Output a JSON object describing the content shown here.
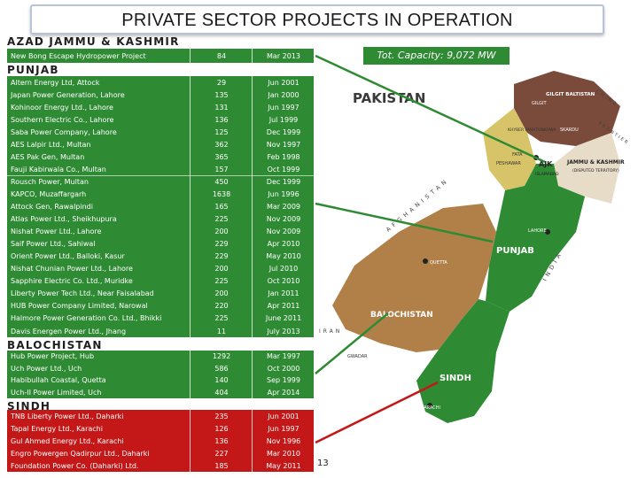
{
  "title": "PRIVATE SECTOR PROJECTS IN OPERATION",
  "total_capacity": "Tot. Capacity: 9,072 MW",
  "page_number": "13",
  "sections": {
    "ajk": {
      "heading": "AZAD JAMMU & KASHMIR",
      "rows": [
        {
          "name": "New Bong Escape Hydropower Project",
          "capacity": "84",
          "date": "Mar 2013"
        }
      ]
    },
    "punjab": {
      "heading": "PUNJAB",
      "rows": [
        {
          "name": "Altern Energy Ltd, Attock",
          "capacity": "29",
          "date": "Jun 2001"
        },
        {
          "name": "Japan Power Generation, Lahore",
          "capacity": "135",
          "date": "Jan 2000"
        },
        {
          "name": "Kohinoor Energy Ltd., Lahore",
          "capacity": "131",
          "date": "Jun 1997"
        },
        {
          "name": "Southern Electric Co., Lahore",
          "capacity": "136",
          "date": "Jul 1999"
        },
        {
          "name": "Saba Power Company, Lahore",
          "capacity": "125",
          "date": "Dec 1999"
        },
        {
          "name": "AES Lalpir Ltd., Multan",
          "capacity": "362",
          "date": "Nov 1997"
        },
        {
          "name": "AES Pak Gen, Multan",
          "capacity": "365",
          "date": "Feb 1998"
        },
        {
          "name": "Fauji Kabirwala Co., Multan",
          "capacity": "157",
          "date": "Oct 1999"
        },
        {
          "name": "Rousch Power, Multan",
          "capacity": "450",
          "date": "Dec 1999"
        },
        {
          "name": "KAPCO, Muzaffargarh",
          "capacity": "1638",
          "date": "Jun 1996"
        },
        {
          "name": "Attock Gen, Rawalpindi",
          "capacity": "165",
          "date": "Mar 2009"
        },
        {
          "name": "Atlas Power Ltd., Sheikhupura",
          "capacity": "225",
          "date": "Nov 2009"
        },
        {
          "name": "Nishat Power Ltd., Lahore",
          "capacity": "200",
          "date": "Nov 2009"
        },
        {
          "name": "Saif Power Ltd., Sahiwal",
          "capacity": "229",
          "date": "Apr 2010"
        },
        {
          "name": "Orient Power Ltd., Balloki, Kasur",
          "capacity": "229",
          "date": "May 2010"
        },
        {
          "name": "Nishat Chunian Power Ltd., Lahore",
          "capacity": "200",
          "date": "Jul 2010"
        },
        {
          "name": "Sapphire Electric Co. Ltd., Muridke",
          "capacity": "225",
          "date": "Oct 2010"
        },
        {
          "name": "Liberty Power Tech Ltd., Near Faisalabad",
          "capacity": "200",
          "date": "Jan 2011"
        },
        {
          "name": "HUB Power Company Limited, Narowal",
          "capacity": "220",
          "date": "Apr 2011"
        },
        {
          "name": "Halmore Power Generation Co. Ltd., Bhikki",
          "capacity": "225",
          "date": "June 2011"
        },
        {
          "name": "Davis Energen Power Ltd., Jhang",
          "capacity": "11",
          "date": "July 2013"
        }
      ]
    },
    "balochistan": {
      "heading": "BALOCHISTAN",
      "rows": [
        {
          "name": "Hub Power Project, Hub",
          "capacity": "1292",
          "date": "Mar 1997"
        },
        {
          "name": "Uch Power Ltd., Uch",
          "capacity": "586",
          "date": "Oct 2000"
        },
        {
          "name": "Habibullah Coastal, Quetta",
          "capacity": "140",
          "date": "Sep 1999"
        },
        {
          "name": "Uch-II Power Limited, Uch",
          "capacity": "404",
          "date": "Apr 2014"
        }
      ]
    },
    "sindh": {
      "heading": "SINDH",
      "rows": [
        {
          "name": "TNB Liberty Power Ltd., Daharki",
          "capacity": "235",
          "date": "Jun 2001"
        },
        {
          "name": "Tapal Energy Ltd., Karachi",
          "capacity": "126",
          "date": "Jun 1997"
        },
        {
          "name": "Gul Ahmed Energy Ltd., Karachi",
          "capacity": "136",
          "date": "Nov 1996"
        },
        {
          "name": "Engro Powergen Qadirpur Ltd., Daharki",
          "capacity": "227",
          "date": "Mar 2010"
        },
        {
          "name": "Foundation Power Co. (Daharki) Ltd.",
          "capacity": "185",
          "date": "May 2011"
        }
      ]
    }
  },
  "map": {
    "country_label": "PAKISTAN",
    "region_labels": {
      "gilgit_baltistan": "GILGIT BALTISTAN",
      "gilgit": "GILGIT",
      "kpk": "KHYBER PAKHTUNKHWA",
      "skardu": "SKARDU",
      "fata": "FATA",
      "peshawar": "PESHAWAR",
      "ajk": "AJK",
      "islamabad": "ISLAMABAD",
      "jk": "JAMMU & KASHMIR",
      "disputed": "(DISPUTED TERRITORY)",
      "lahore": "LAHORE",
      "quetta": "QUETTA",
      "punjab": "PUNJAB",
      "balochistan": "BALOCHISTAN",
      "sindh": "SINDH",
      "gwadar": "GWADAR",
      "karachi": "KARACHI"
    },
    "neighbor_labels": {
      "china": "CHINA",
      "afghanistan": "AFGHANISTAN",
      "india": "INDIA",
      "iran": "IRAN",
      "frontier": "FRONTIER"
    },
    "colors": {
      "punjab": "#2f8a34",
      "sindh": "#2f8a34",
      "balochistan": "#b08048",
      "kpk": "#d8c468",
      "gilgit": "#7a4a3a",
      "kashmir": "#e6dcc8",
      "accent_green": "#2f8a34",
      "accent_red": "#c41818"
    }
  }
}
